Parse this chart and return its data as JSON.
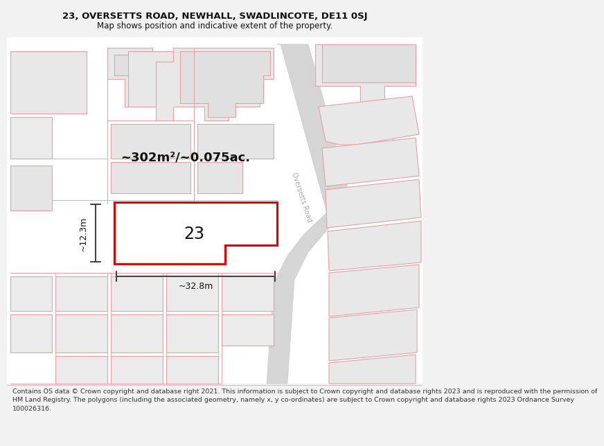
{
  "title_line1": "23, OVERSETTS ROAD, NEWHALL, SWADLINCOTE, DE11 0SJ",
  "title_line2": "Map shows position and indicative extent of the property.",
  "footer_lines": [
    "Contains OS data © Crown copyright and database right 2021. This information is subject to Crown copyright and database rights 2023 and is reproduced with the permission of",
    "HM Land Registry. The polygons (including the associated geometry, namely x, y co-ordinates) are subject to Crown copyright and database rights 2023 Ordnance Survey",
    "100026316."
  ],
  "area_label": "~302m²/~0.075ac.",
  "width_label": "~32.8m",
  "height_label": "~12.3m",
  "number_label": "23",
  "road_label": "Oversetts Road",
  "bg_color": "#f2f2f2",
  "map_bg": "#ffffff",
  "bld_fill": "#e8e8e8",
  "bld_edge": "#e8a0a0",
  "plot_fill": "#ffffff",
  "plot_edge": "#e8a0a0",
  "highlight_edge": "#dd0000",
  "road_fill": "#d8d8d8",
  "road_edge": "#cccccc",
  "dim_color": "#444444",
  "text_color": "#111111",
  "road_text_color": "#b0b0b0"
}
